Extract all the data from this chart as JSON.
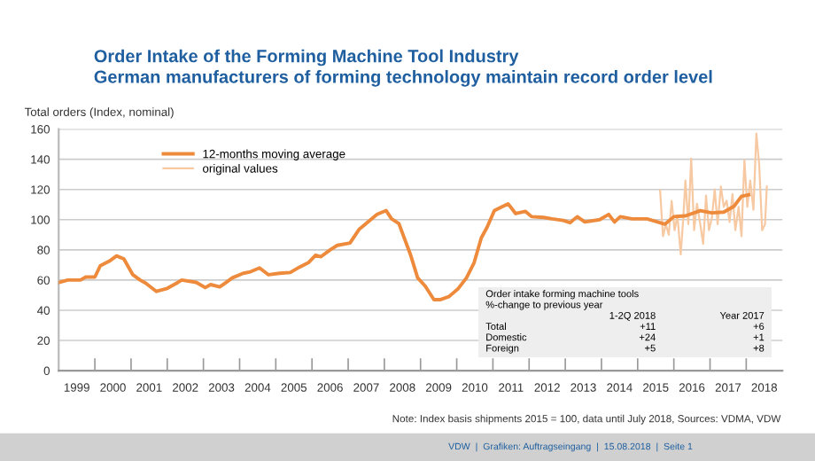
{
  "chart_data": {
    "type": "line",
    "title": "Order Intake of the Forming Machine Tool Industry",
    "subtitle": "German manufacturers of forming technology maintain record order level",
    "ylabel": "Total orders (Index, nominal)",
    "xlim": [
      1999,
      2019
    ],
    "xticks": [
      {
        "value": 1999.5,
        "label": "1999"
      },
      {
        "value": 2000.5,
        "label": "2000"
      },
      {
        "value": 2001.5,
        "label": "2001"
      },
      {
        "value": 2002.5,
        "label": "2002"
      },
      {
        "value": 2003.5,
        "label": "2003"
      },
      {
        "value": 2004.5,
        "label": "2004"
      },
      {
        "value": 2005.5,
        "label": "2005"
      },
      {
        "value": 2006.5,
        "label": "2006"
      },
      {
        "value": 2007.5,
        "label": "2007"
      },
      {
        "value": 2008.5,
        "label": "2008"
      },
      {
        "value": 2009.5,
        "label": "2009"
      },
      {
        "value": 2010.5,
        "label": "2010"
      },
      {
        "value": 2011.5,
        "label": "2011"
      },
      {
        "value": 2012.5,
        "label": "2012"
      },
      {
        "value": 2013.5,
        "label": "2013"
      },
      {
        "value": 2014.5,
        "label": "2014"
      },
      {
        "value": 2015.5,
        "label": "2015"
      },
      {
        "value": 2016.5,
        "label": "2016"
      },
      {
        "value": 2017.5,
        "label": "2017"
      },
      {
        "value": 2018.5,
        "label": "2018"
      },
      {
        "value": 2000,
        "label": null
      },
      {
        "value": 2001,
        "label": null
      },
      {
        "value": 2002,
        "label": null
      },
      {
        "value": 2003,
        "label": null
      },
      {
        "value": 2004,
        "label": null
      },
      {
        "value": 2005,
        "label": null
      },
      {
        "value": 2006,
        "label": null
      },
      {
        "value": 2007,
        "label": null
      },
      {
        "value": 2008,
        "label": null
      },
      {
        "value": 2009,
        "label": null
      },
      {
        "value": 2010,
        "label": null
      },
      {
        "value": 2011,
        "label": null
      },
      {
        "value": 2012,
        "label": null
      },
      {
        "value": 2013,
        "label": null
      },
      {
        "value": 2014,
        "label": null
      },
      {
        "value": 2015,
        "label": null
      },
      {
        "value": 2016,
        "label": null
      },
      {
        "value": 2017,
        "label": null
      },
      {
        "value": 2018,
        "label": null
      }
    ],
    "ylim": [
      0,
      160
    ],
    "yticks": [
      0,
      20,
      40,
      60,
      80,
      100,
      120,
      140,
      160
    ],
    "grid": "y",
    "legend": "top left",
    "line_style": "solid",
    "series": [
      {
        "name": "12-months moving average",
        "color": "#ed8a3c",
        "x": [
          1999.03,
          1999.25,
          1999.6,
          1999.75,
          2000.0,
          2000.15,
          2000.4,
          2000.6,
          2000.8,
          2001.05,
          2001.25,
          2001.4,
          2001.7,
          2002.0,
          2002.3,
          2002.4,
          2002.8,
          2003.05,
          2003.2,
          2003.45,
          2003.6,
          2003.8,
          2004.1,
          2004.3,
          2004.55,
          2004.8,
          2005.1,
          2005.4,
          2005.65,
          2005.9,
          2006.1,
          2006.25,
          2006.5,
          2006.7,
          2007.05,
          2007.3,
          2007.55,
          2007.8,
          2008.05,
          2008.2,
          2008.4,
          2008.72,
          2008.92,
          2009.13,
          2009.37,
          2009.54,
          2009.78,
          2010.03,
          2010.27,
          2010.48,
          2010.68,
          2010.84,
          2011.04,
          2011.25,
          2011.42,
          2011.63,
          2011.9,
          2012.07,
          2012.4,
          2012.64,
          2012.94,
          2013.13,
          2013.33,
          2013.54,
          2013.95,
          2014.2,
          2014.36,
          2014.52,
          2014.85,
          2015.26,
          2015.55,
          2015.75,
          2016.0,
          2016.32,
          2016.73,
          2017.05,
          2017.38,
          2017.67,
          2017.87,
          2018.07
        ],
        "values": [
          58.5,
          60,
          60,
          62,
          62,
          69.5,
          72.5,
          76,
          74,
          63.5,
          60,
          58,
          52.5,
          54.5,
          58.5,
          60,
          58.5,
          55,
          57,
          55.5,
          58,
          61.5,
          64.5,
          65.5,
          68,
          63.5,
          64.5,
          65,
          68.5,
          71.5,
          76.5,
          75.5,
          80,
          83,
          84.5,
          93.5,
          98.5,
          103.5,
          106,
          100.5,
          97.5,
          77,
          61.5,
          56,
          47,
          47,
          49,
          54,
          61.5,
          71.5,
          88,
          95,
          106,
          108.5,
          110.5,
          104,
          105.5,
          102,
          101.5,
          100.5,
          99.5,
          98,
          102,
          98.5,
          100,
          103.5,
          98.5,
          102,
          100.5,
          100.5,
          98.5,
          97,
          102,
          102.5,
          106,
          104.5,
          105,
          109,
          115.5,
          116.5
        ]
      },
      {
        "name": "original values",
        "color": "#f7c9a2",
        "x": [
          2015.62,
          2015.7,
          2015.78,
          2015.86,
          2015.94,
          2016.02,
          2016.1,
          2016.19,
          2016.26,
          2016.32,
          2016.4,
          2016.48,
          2016.56,
          2016.64,
          2016.73,
          2016.81,
          2016.89,
          2016.97,
          2017.05,
          2017.13,
          2017.21,
          2017.3,
          2017.38,
          2017.46,
          2017.54,
          2017.62,
          2017.7,
          2017.79,
          2017.87,
          2017.95,
          2018.03,
          2018.11,
          2018.2,
          2018.28,
          2018.36,
          2018.44,
          2018.52,
          2018.57
        ],
        "values": [
          119.5,
          89,
          97,
          90,
          112.5,
          93,
          102.5,
          77,
          101,
          126,
          97,
          140.5,
          93,
          110.5,
          97,
          84,
          116,
          93,
          101,
          120,
          97,
          122,
          108.5,
          112.5,
          98.5,
          117,
          93,
          108.5,
          89,
          139.5,
          108.5,
          126,
          106.5,
          157,
          136,
          93,
          97,
          122
        ]
      }
    ],
    "annotations": [
      "Order intake forming machine tools",
      "%-change to previous year",
      "1-2Q 2018",
      "Year 2017",
      "Total",
      "+11",
      "+6",
      "Domestic",
      "+24",
      "+1",
      "Foreign",
      "+5",
      "+8",
      "Note: Index basis shipments 2015 = 100, data until July 2018, Sources: VDMA, VDW",
      "VDW  |  Grafiken: Auftragseingang  |  15.08.2018  |  Seite 1"
    ]
  }
}
